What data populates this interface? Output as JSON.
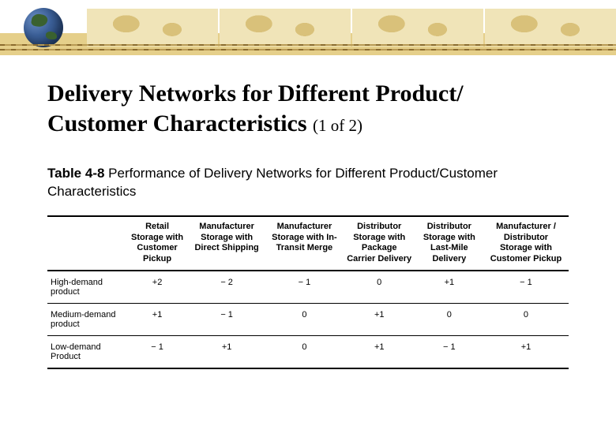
{
  "title_line1": "Delivery Networks for Different Product/",
  "title_line2": "Customer Characteristics ",
  "title_suffix": "(1 of 2)",
  "caption_label": "Table 4-8",
  "caption_text": " Performance of Delivery Networks for Different Product/Customer Characteristics",
  "columns": [
    "Retail Storage with Customer Pickup",
    "Manufacturer Storage with Direct Shipping",
    "Manufacturer Storage with In-Transit Merge",
    "Distributor Storage with Package Carrier Delivery",
    "Distributor Storage with Last-Mile Delivery",
    "Manufacturer / Distributor Storage with Customer Pickup"
  ],
  "rows": [
    {
      "label": "High-demand product",
      "v": [
        "+2",
        "− 2",
        "− 1",
        "0",
        "+1",
        "− 1"
      ]
    },
    {
      "label": "Medium-demand product",
      "v": [
        "+1",
        "− 1",
        "0",
        "+1",
        "0",
        "0"
      ]
    },
    {
      "label": "Low-demand Product",
      "v": [
        "− 1",
        "+1",
        "0",
        "+1",
        "− 1",
        "+1"
      ]
    }
  ],
  "colors": {
    "text": "#000000",
    "banner_sand": "#e5cf8a",
    "map_fill": "#f0e4b8",
    "map_land": "#d9c17a",
    "globe_ocean": "#3b5f97",
    "globe_land": "#3a612f"
  },
  "fonts": {
    "title_family": "Times New Roman",
    "title_size_pt": 23,
    "title_suffix_size_pt": 16,
    "body_family": "Verdana",
    "caption_size_pt": 13,
    "table_size_pt": 8.5
  }
}
